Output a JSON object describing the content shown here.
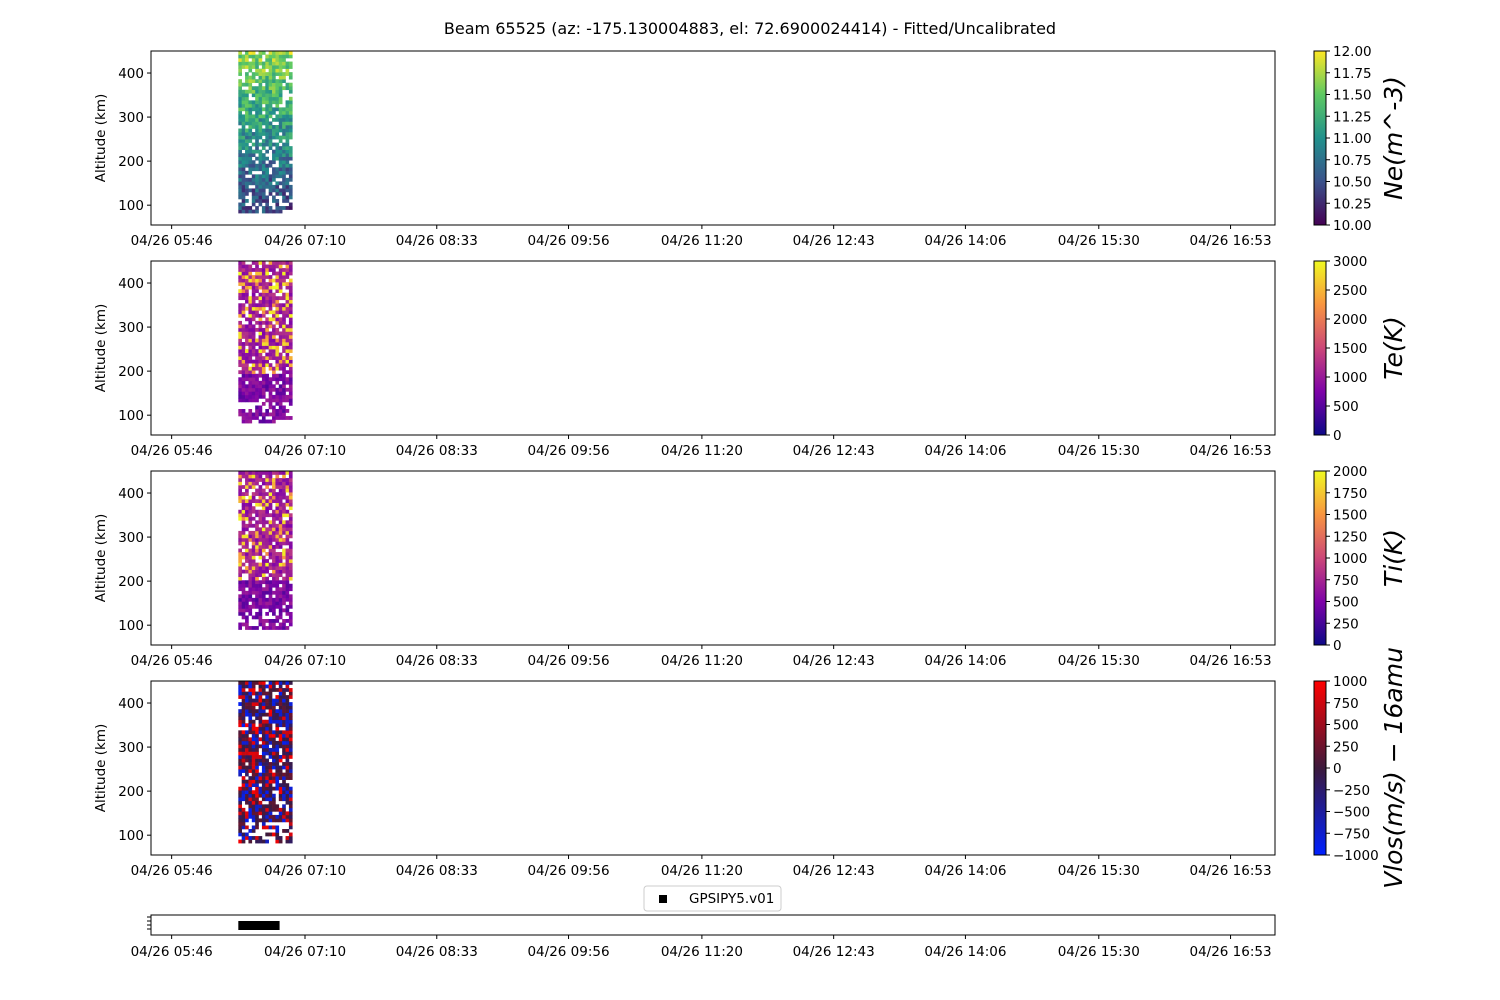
{
  "chart_data": {
    "title": "Beam 65525 (az: -175.130004883, el: 72.6900024414) - Fitted/Uncalibrated",
    "x_tick_labels": [
      "04/26 05:46",
      "04/26 07:10",
      "04/26 08:33",
      "04/26 09:56",
      "04/26 11:20",
      "04/26 12:43",
      "04/26 14:06",
      "04/26 15:30",
      "04/26 16:53"
    ],
    "x_ticks_minutes": [
      346,
      430,
      513,
      596,
      680,
      763,
      846,
      930,
      1013
    ],
    "xlim_minutes": [
      333,
      1041
    ],
    "data_time_range_minutes": [
      388,
      422
    ],
    "panels": [
      {
        "type": "heatmap",
        "ylabel": "Altitude (km)",
        "ylim": [
          55,
          450
        ],
        "y_ticks": [
          100,
          200,
          300,
          400
        ],
        "colorbar_label": "Ne(m^-3)",
        "colormap": "viridis",
        "clim": [
          10.0,
          12.0
        ],
        "colorbar_ticks": [
          "10.00",
          "10.25",
          "10.50",
          "10.75",
          "11.00",
          "11.25",
          "11.50",
          "11.75",
          "12.00"
        ],
        "altitude_range_km": [
          82,
          450
        ]
      },
      {
        "type": "heatmap",
        "ylabel": "Altitude (km)",
        "ylim": [
          55,
          450
        ],
        "y_ticks": [
          100,
          200,
          300,
          400
        ],
        "colorbar_label": "Te(K)",
        "colormap": "plasma",
        "clim": [
          0,
          3000
        ],
        "colorbar_ticks": [
          "0",
          "500",
          "1000",
          "1500",
          "2000",
          "2500",
          "3000"
        ],
        "altitude_range_km": [
          82,
          450
        ]
      },
      {
        "type": "heatmap",
        "ylabel": "Altitude (km)",
        "ylim": [
          55,
          450
        ],
        "y_ticks": [
          100,
          200,
          300,
          400
        ],
        "colorbar_label": "Ti(K)",
        "colormap": "plasma",
        "clim": [
          0,
          2000
        ],
        "colorbar_ticks": [
          "0",
          "250",
          "500",
          "750",
          "1000",
          "1250",
          "1500",
          "1750",
          "2000"
        ],
        "altitude_range_km": [
          90,
          450
        ]
      },
      {
        "type": "heatmap",
        "ylabel": "Altitude (km)",
        "ylim": [
          55,
          450
        ],
        "y_ticks": [
          100,
          200,
          300,
          400
        ],
        "colorbar_label": "Vlos(m/s) − 16amu",
        "colormap": "blue-darkpurple-red",
        "clim": [
          -1000,
          1000
        ],
        "colorbar_ticks": [
          "−1000",
          "−750",
          "−500",
          "−250",
          "0",
          "250",
          "500",
          "750",
          "1000"
        ],
        "altitude_range_km": [
          82,
          450
        ]
      }
    ],
    "timeline": {
      "legend_label": "GPSIPY5.v01",
      "experiment_range_minutes": [
        388,
        414
      ]
    }
  }
}
